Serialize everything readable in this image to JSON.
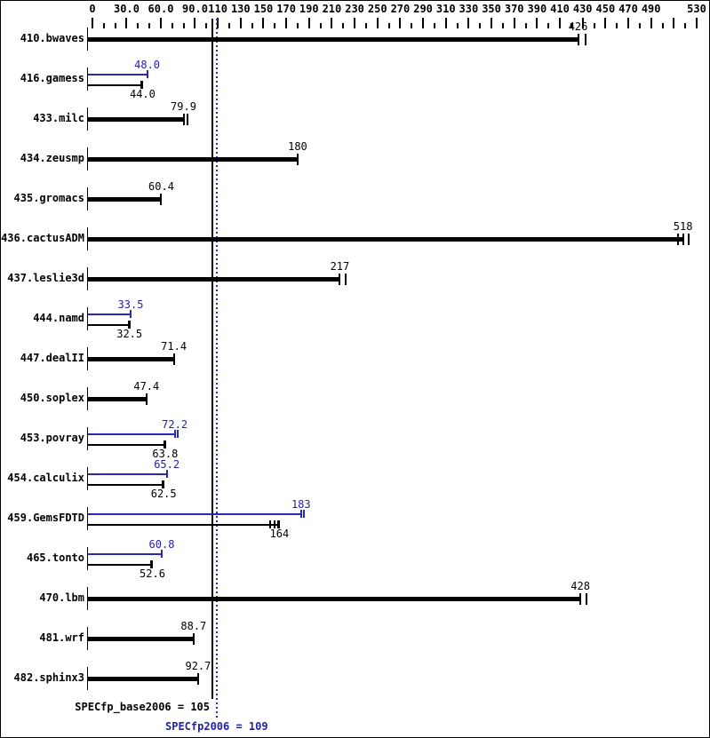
{
  "window": {
    "bg": "#ffffff",
    "border": "#000000"
  },
  "colors": {
    "base_bar": "#000000",
    "peak_bar": "#2929b8",
    "peak_text": "#2222aa",
    "solid_refline": "#000000",
    "dotted_refline": "#2a2abf"
  },
  "chart_data": {
    "type": "bar",
    "orientation": "horizontal",
    "title": "",
    "xlabel": "",
    "ylabel": "",
    "grid": false,
    "axis": {
      "min": 0,
      "max": 530,
      "minor_tick_step": 10,
      "labeled_ticks": [
        {
          "value": 0,
          "label": "0"
        },
        {
          "value": 30,
          "label": "30.0"
        },
        {
          "value": 60,
          "label": "60.0"
        },
        {
          "value": 90,
          "label": "90.0"
        },
        {
          "value": 110,
          "label": "110"
        },
        {
          "value": 130,
          "label": "130"
        },
        {
          "value": 150,
          "label": "150"
        },
        {
          "value": 170,
          "label": "170"
        },
        {
          "value": 190,
          "label": "190"
        },
        {
          "value": 210,
          "label": "210"
        },
        {
          "value": 230,
          "label": "230"
        },
        {
          "value": 250,
          "label": "250"
        },
        {
          "value": 270,
          "label": "270"
        },
        {
          "value": 290,
          "label": "290"
        },
        {
          "value": 310,
          "label": "310"
        },
        {
          "value": 330,
          "label": "330"
        },
        {
          "value": 350,
          "label": "350"
        },
        {
          "value": 370,
          "label": "370"
        },
        {
          "value": 390,
          "label": "390"
        },
        {
          "value": 410,
          "label": "410"
        },
        {
          "value": 430,
          "label": "430"
        },
        {
          "value": 450,
          "label": "450"
        },
        {
          "value": 470,
          "label": "470"
        },
        {
          "value": 490,
          "label": "490"
        },
        {
          "value": 530,
          "label": "530"
        }
      ],
      "unlabeled_major_ticks": [
        510
      ]
    },
    "series_legend": [
      {
        "name": "base",
        "color": "black"
      },
      {
        "name": "peak",
        "color": "blue"
      }
    ],
    "benchmarks": [
      {
        "name": "410.bwaves",
        "base": 426,
        "base_label": "426",
        "peak": null,
        "peak_label": null,
        "base_marks": [
          0,
          8
        ],
        "peak_marks": []
      },
      {
        "name": "416.gamess",
        "base": 44.0,
        "base_label": "44.0",
        "peak": 48.0,
        "peak_label": "48.0",
        "base_marks": [
          0
        ],
        "peak_marks": [
          0
        ]
      },
      {
        "name": "433.milc",
        "base": 79.9,
        "base_label": "79.9",
        "peak": null,
        "peak_label": null,
        "base_marks": [
          0,
          4
        ],
        "peak_marks": []
      },
      {
        "name": "434.zeusmp",
        "base": 180,
        "base_label": "180",
        "peak": null,
        "peak_label": null,
        "base_marks": [
          0
        ],
        "peak_marks": []
      },
      {
        "name": "435.gromacs",
        "base": 60.4,
        "base_label": "60.4",
        "peak": null,
        "peak_label": null,
        "base_marks": [
          0
        ],
        "peak_marks": []
      },
      {
        "name": "436.cactusADM",
        "base": 518,
        "base_label": "518",
        "peak": null,
        "peak_label": null,
        "base_marks": [
          -6,
          0,
          6
        ],
        "peak_marks": []
      },
      {
        "name": "437.leslie3d",
        "base": 217,
        "base_label": "217",
        "peak": null,
        "peak_label": null,
        "base_marks": [
          0,
          7
        ],
        "peak_marks": []
      },
      {
        "name": "444.namd",
        "base": 32.5,
        "base_label": "32.5",
        "peak": 33.5,
        "peak_label": "33.5",
        "base_marks": [
          0
        ],
        "peak_marks": [
          0
        ]
      },
      {
        "name": "447.dealII",
        "base": 71.4,
        "base_label": "71.4",
        "peak": null,
        "peak_label": null,
        "base_marks": [
          0
        ],
        "peak_marks": []
      },
      {
        "name": "450.soplex",
        "base": 47.4,
        "base_label": "47.4",
        "peak": null,
        "peak_label": null,
        "base_marks": [
          0
        ],
        "peak_marks": []
      },
      {
        "name": "453.povray",
        "base": 63.8,
        "base_label": "63.8",
        "peak": 72.2,
        "peak_label": "72.2",
        "base_marks": [
          0
        ],
        "peak_marks": [
          0,
          3
        ]
      },
      {
        "name": "454.calculix",
        "base": 62.5,
        "base_label": "62.5",
        "peak": 65.2,
        "peak_label": "65.2",
        "base_marks": [
          0
        ],
        "peak_marks": [
          0
        ]
      },
      {
        "name": "459.GemsFDTD",
        "base": 164,
        "base_label": "164",
        "peak": 183,
        "peak_label": "183",
        "base_marks": [
          -10,
          -5,
          0
        ],
        "peak_marks": [
          0,
          3
        ]
      },
      {
        "name": "465.tonto",
        "base": 52.6,
        "base_label": "52.6",
        "peak": 60.8,
        "peak_label": "60.8",
        "base_marks": [
          0
        ],
        "peak_marks": [
          0
        ]
      },
      {
        "name": "470.lbm",
        "base": 428,
        "base_label": "428",
        "peak": null,
        "peak_label": null,
        "base_marks": [
          0,
          7
        ],
        "peak_marks": []
      },
      {
        "name": "481.wrf",
        "base": 88.7,
        "base_label": "88.7",
        "peak": null,
        "peak_label": null,
        "base_marks": [
          0
        ],
        "peak_marks": []
      },
      {
        "name": "482.sphinx3",
        "base": 92.7,
        "base_label": "92.7",
        "peak": null,
        "peak_label": null,
        "base_marks": [
          0
        ],
        "peak_marks": []
      }
    ],
    "reference_lines": [
      {
        "name": "base_mean",
        "value": 105,
        "style": "solid",
        "label": "SPECfp_base2006 = 105"
      },
      {
        "name": "peak_mean",
        "value": 109,
        "style": "dotted",
        "label": "SPECfp2006 = 109"
      }
    ]
  },
  "footer": {
    "base_summary": "SPECfp_base2006 = 105",
    "peak_summary": "SPECfp2006 = 109"
  }
}
